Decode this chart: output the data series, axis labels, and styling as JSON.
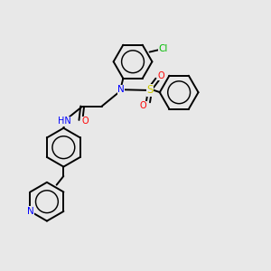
{
  "background_color": "#e8e8e8",
  "atoms": {
    "Cl": {
      "color": "#00bb00"
    },
    "N": {
      "color": "#0000ff"
    },
    "O": {
      "color": "#ff0000"
    },
    "S": {
      "color": "#cccc00"
    },
    "C": {
      "color": "#000000"
    },
    "H": {
      "color": "#888888"
    }
  },
  "bond_color": "#000000",
  "bond_width": 1.4
}
